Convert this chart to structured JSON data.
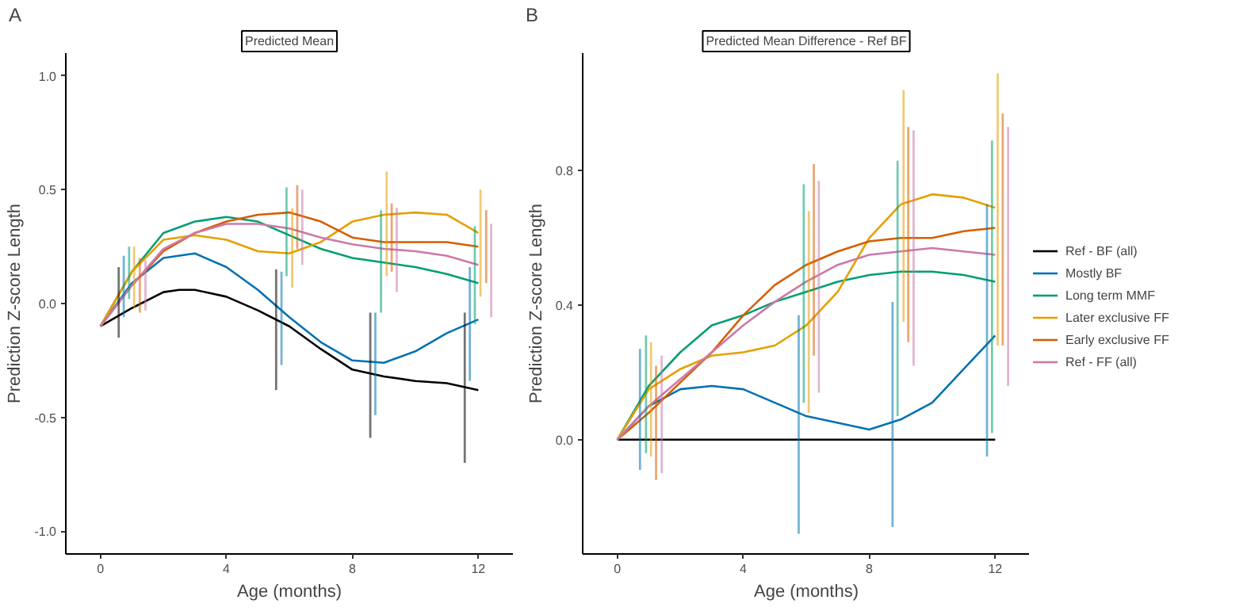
{
  "chart_data": [
    {
      "type": "line",
      "title": "Predicted Mean",
      "annotations": [
        "A"
      ],
      "xlabel": "Age (months)",
      "ylabel": "Prediction Z-score Length",
      "xlim": [
        -1.1,
        13.1
      ],
      "xticks": [
        0,
        4,
        8,
        12
      ],
      "ylim": [
        -1.1,
        1.1
      ],
      "yticks": [
        {
          "value": -1,
          "label": "-1.0"
        },
        {
          "value": -0.5,
          "label": "-0.5"
        },
        {
          "value": 0,
          "label": "0.0"
        },
        {
          "value": 0.5,
          "label": "0.5"
        },
        {
          "value": 1,
          "label": "1.0"
        }
      ],
      "grid": false,
      "legend": false,
      "series": [
        {
          "color": "#000000",
          "x": [
            0,
            1,
            2,
            2.5,
            3,
            4,
            5,
            6,
            7,
            8,
            9,
            10,
            11,
            12
          ],
          "values": [
            -0.1,
            -0.02,
            0.05,
            0.06,
            0.06,
            0.03,
            -0.03,
            -0.1,
            -0.2,
            -0.29,
            -0.32,
            -0.34,
            -0.35,
            -0.38
          ]
        },
        {
          "color": "#0072b2",
          "x": [
            0,
            1,
            2,
            3,
            4,
            5,
            6,
            7,
            8,
            9,
            10,
            11,
            12
          ],
          "values": [
            -0.1,
            0.09,
            0.2,
            0.22,
            0.16,
            0.06,
            -0.06,
            -0.17,
            -0.25,
            -0.26,
            -0.21,
            -0.13,
            -0.07
          ]
        },
        {
          "color": "#009e73",
          "x": [
            0,
            1,
            2,
            3,
            4,
            5,
            6,
            7,
            8,
            9,
            10,
            11,
            12
          ],
          "values": [
            -0.1,
            0.14,
            0.31,
            0.36,
            0.38,
            0.36,
            0.3,
            0.24,
            0.2,
            0.18,
            0.16,
            0.13,
            0.09
          ]
        },
        {
          "color": "#e69f00",
          "x": [
            0,
            1,
            2,
            3,
            4,
            5,
            6,
            7,
            8,
            9,
            10,
            11,
            12
          ],
          "values": [
            -0.1,
            0.14,
            0.28,
            0.3,
            0.28,
            0.23,
            0.22,
            0.27,
            0.36,
            0.39,
            0.4,
            0.39,
            0.31
          ]
        },
        {
          "color": "#d55e00",
          "x": [
            0,
            1,
            2,
            3,
            4,
            5,
            6,
            7,
            8,
            9,
            10,
            11,
            12
          ],
          "values": [
            -0.1,
            0.08,
            0.23,
            0.31,
            0.36,
            0.39,
            0.4,
            0.36,
            0.29,
            0.27,
            0.27,
            0.27,
            0.25
          ]
        },
        {
          "color": "#cc79a7",
          "x": [
            0,
            1,
            2,
            3,
            4,
            5,
            6,
            7,
            8,
            9,
            10,
            11,
            12
          ],
          "values": [
            -0.1,
            0.08,
            0.24,
            0.31,
            0.35,
            0.35,
            0.33,
            0.29,
            0.26,
            0.24,
            0.23,
            0.21,
            0.17
          ]
        },
        {
          "type": "bar",
          "color": "#000000",
          "x": [
            0.58,
            5.58,
            8.57,
            11.57
          ],
          "base": [
            -0.15,
            -0.38,
            -0.59,
            -0.7
          ],
          "values": [
            0.31,
            0.53,
            0.55,
            0.66
          ]
        },
        {
          "type": "bar",
          "color": "#0072b2",
          "x": [
            0.74,
            5.75,
            8.73,
            11.73
          ],
          "base": [
            -0.06,
            -0.27,
            -0.49,
            -0.34
          ],
          "values": [
            0.27,
            0.41,
            0.45,
            0.5
          ]
        },
        {
          "type": "bar",
          "color": "#009e73",
          "x": [
            0.91,
            5.91,
            8.91,
            11.89
          ],
          "base": [
            0.02,
            0.12,
            -0.04,
            -0.09
          ],
          "values": [
            0.23,
            0.39,
            0.45,
            0.43
          ]
        },
        {
          "type": "bar",
          "color": "#e69f00",
          "x": [
            1.07,
            6.09,
            9.09,
            12.07
          ],
          "base": [
            -0.02,
            0.07,
            0.12,
            0.03
          ],
          "values": [
            0.27,
            0.35,
            0.46,
            0.47
          ]
        },
        {
          "type": "bar",
          "color": "#d55e00",
          "x": [
            1.25,
            6.25,
            9.25,
            12.25
          ],
          "base": [
            -0.04,
            0.24,
            0.14,
            0.09
          ],
          "values": [
            0.24,
            0.28,
            0.3,
            0.32
          ]
        },
        {
          "type": "bar",
          "color": "#cc79a7",
          "x": [
            1.43,
            6.41,
            9.41,
            12.41
          ],
          "base": [
            -0.03,
            0.17,
            0.05,
            -0.06
          ],
          "values": [
            0.22,
            0.33,
            0.37,
            0.41
          ]
        }
      ]
    },
    {
      "type": "line",
      "title": "Predicted Mean Difference - Ref BF",
      "annotations": [
        "B"
      ],
      "xlabel": "Age (months)",
      "ylabel": "Prediction Z-score Length",
      "xlim": [
        -1.1,
        13.1
      ],
      "xticks": [
        0,
        4,
        8,
        12
      ],
      "ylim": [
        -0.34,
        1.15
      ],
      "yticks": [
        {
          "value": 0,
          "label": "0.0"
        },
        {
          "value": 0.4,
          "label": "0.4"
        },
        {
          "value": 0.8,
          "label": "0.8"
        }
      ],
      "grid": false,
      "legend": "right",
      "series": [
        {
          "name": "Ref - BF (all)",
          "color": "#000000",
          "x": [
            0,
            12
          ],
          "values": [
            0,
            0
          ]
        },
        {
          "name": "Mostly BF",
          "color": "#0072b2",
          "x": [
            0,
            1,
            2,
            3,
            4,
            5,
            6,
            7,
            8,
            9,
            10,
            11,
            12
          ],
          "values": [
            0,
            0.1,
            0.15,
            0.16,
            0.15,
            0.11,
            0.07,
            0.05,
            0.03,
            0.06,
            0.11,
            0.21,
            0.31
          ]
        },
        {
          "name": "Long term MMF",
          "color": "#009e73",
          "x": [
            0,
            1,
            2,
            3,
            4,
            5,
            6,
            7,
            8,
            9,
            10,
            11,
            12
          ],
          "values": [
            0,
            0.16,
            0.26,
            0.34,
            0.37,
            0.41,
            0.44,
            0.47,
            0.49,
            0.5,
            0.5,
            0.49,
            0.47
          ]
        },
        {
          "name": "Later exclusive FF",
          "color": "#e69f00",
          "x": [
            0,
            1,
            2,
            3,
            4,
            5,
            6,
            7,
            8,
            9,
            10,
            11,
            12
          ],
          "values": [
            0,
            0.15,
            0.21,
            0.25,
            0.26,
            0.28,
            0.34,
            0.44,
            0.6,
            0.7,
            0.73,
            0.72,
            0.69
          ]
        },
        {
          "name": "Early exclusive FF",
          "color": "#d55e00",
          "x": [
            0,
            1,
            2,
            3,
            4,
            5,
            6,
            7,
            8,
            9,
            10,
            11,
            12
          ],
          "values": [
            0,
            0.08,
            0.17,
            0.26,
            0.37,
            0.46,
            0.52,
            0.56,
            0.59,
            0.6,
            0.6,
            0.62,
            0.63
          ]
        },
        {
          "name": "Ref - FF (all)",
          "color": "#cc79a7",
          "x": [
            0,
            1,
            2,
            3,
            4,
            5,
            6,
            7,
            8,
            9,
            10,
            11,
            12
          ],
          "values": [
            0,
            0.1,
            0.18,
            0.26,
            0.34,
            0.41,
            0.47,
            0.52,
            0.55,
            0.56,
            0.57,
            0.56,
            0.55
          ]
        },
        {
          "type": "bar",
          "color": "#0072b2",
          "x": [
            0.72,
            5.76,
            8.74,
            11.74
          ],
          "base": [
            -0.09,
            -0.28,
            -0.26,
            -0.05
          ],
          "values": [
            0.36,
            0.65,
            0.67,
            0.75
          ]
        },
        {
          "type": "bar",
          "color": "#009e73",
          "x": [
            0.91,
            5.92,
            8.9,
            11.9
          ],
          "base": [
            -0.04,
            0.11,
            0.07,
            0.02
          ],
          "values": [
            0.35,
            0.65,
            0.76,
            0.87
          ]
        },
        {
          "type": "bar",
          "color": "#e69f00",
          "x": [
            1.07,
            6.08,
            9.09,
            12.08
          ],
          "base": [
            -0.05,
            0.08,
            0.35,
            0.28
          ],
          "values": [
            0.34,
            0.6,
            0.69,
            0.81
          ]
        },
        {
          "type": "bar",
          "color": "#d55e00",
          "x": [
            1.23,
            6.24,
            9.24,
            12.24
          ],
          "base": [
            -0.12,
            0.25,
            0.29,
            0.28
          ],
          "values": [
            0.34,
            0.57,
            0.64,
            0.69
          ]
        },
        {
          "type": "bar",
          "color": "#cc79a7",
          "x": [
            1.41,
            6.4,
            9.41,
            12.41
          ],
          "base": [
            -0.1,
            0.14,
            0.22,
            0.16
          ],
          "values": [
            0.35,
            0.63,
            0.7,
            0.77
          ]
        }
      ]
    }
  ]
}
